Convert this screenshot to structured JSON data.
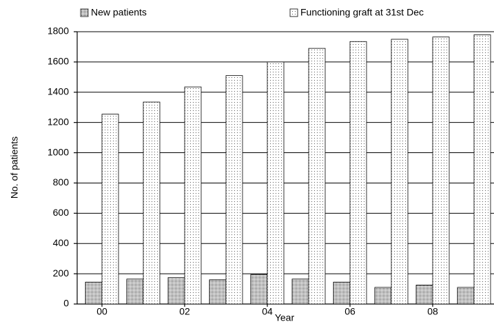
{
  "chart_data": {
    "type": "bar",
    "y_label": "No. of patients",
    "x_label": "Year",
    "categories": [
      "00",
      null,
      "02",
      null,
      "04",
      null,
      "06",
      null,
      "08",
      null
    ],
    "series": [
      {
        "name": "New patients",
        "color": "#000000",
        "values": [
          145,
          165,
          175,
          160,
          195,
          165,
          145,
          110,
          125,
          110
        ]
      },
      {
        "name": "Functioning graft at 31st Dec",
        "color": "#555555",
        "values": [
          1255,
          1335,
          1435,
          1510,
          1600,
          1690,
          1735,
          1750,
          1765,
          1780
        ]
      }
    ],
    "ylim": [
      0,
      1800
    ],
    "yticks": [
      0,
      200,
      400,
      600,
      800,
      1000,
      1200,
      1400,
      1600,
      1800
    ],
    "grid": true
  }
}
